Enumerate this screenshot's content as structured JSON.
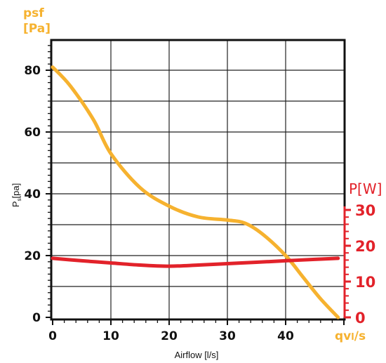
{
  "chart_data": {
    "type": "line",
    "left_axis": {
      "unit_line1": "psf",
      "unit_line2": "[Pa]",
      "label": "P",
      "label_sub": "s",
      "label_suffix": "[pa]",
      "ticks": [
        0,
        20,
        40,
        60,
        80
      ],
      "range": [
        0,
        90
      ]
    },
    "right_axis": {
      "unit": "P[W]",
      "ticks": [
        0,
        10,
        20,
        30
      ],
      "range": [
        0,
        35
      ]
    },
    "x_axis": {
      "label": "Airflow [l/s]",
      "end_label": "qv",
      "end_label_sub": "l",
      "end_label_suffix": "/s",
      "ticks": [
        0,
        10,
        20,
        30,
        40
      ],
      "range": [
        0,
        50
      ]
    },
    "grid": true,
    "series": [
      {
        "axis": "left",
        "color": "#f6b22f",
        "x": [
          0,
          3,
          7,
          10,
          15,
          20,
          25,
          30,
          33,
          36,
          40,
          43,
          46,
          49
        ],
        "y": [
          81,
          75,
          64,
          53,
          42,
          36,
          32.5,
          31.5,
          30.5,
          27,
          20,
          13,
          6,
          0
        ]
      },
      {
        "axis": "right",
        "color": "#e2222a",
        "x": [
          0,
          5,
          10,
          15,
          20,
          25,
          30,
          35,
          40,
          45,
          49
        ],
        "y": [
          16.5,
          15.8,
          15.2,
          14.6,
          14.3,
          14.6,
          15.0,
          15.4,
          15.8,
          16.2,
          16.5
        ]
      }
    ],
    "colors": {
      "left_axis_unit": "#f6b22f",
      "right_axis": "#e2222a",
      "x_end_label": "#f6b22f"
    }
  }
}
